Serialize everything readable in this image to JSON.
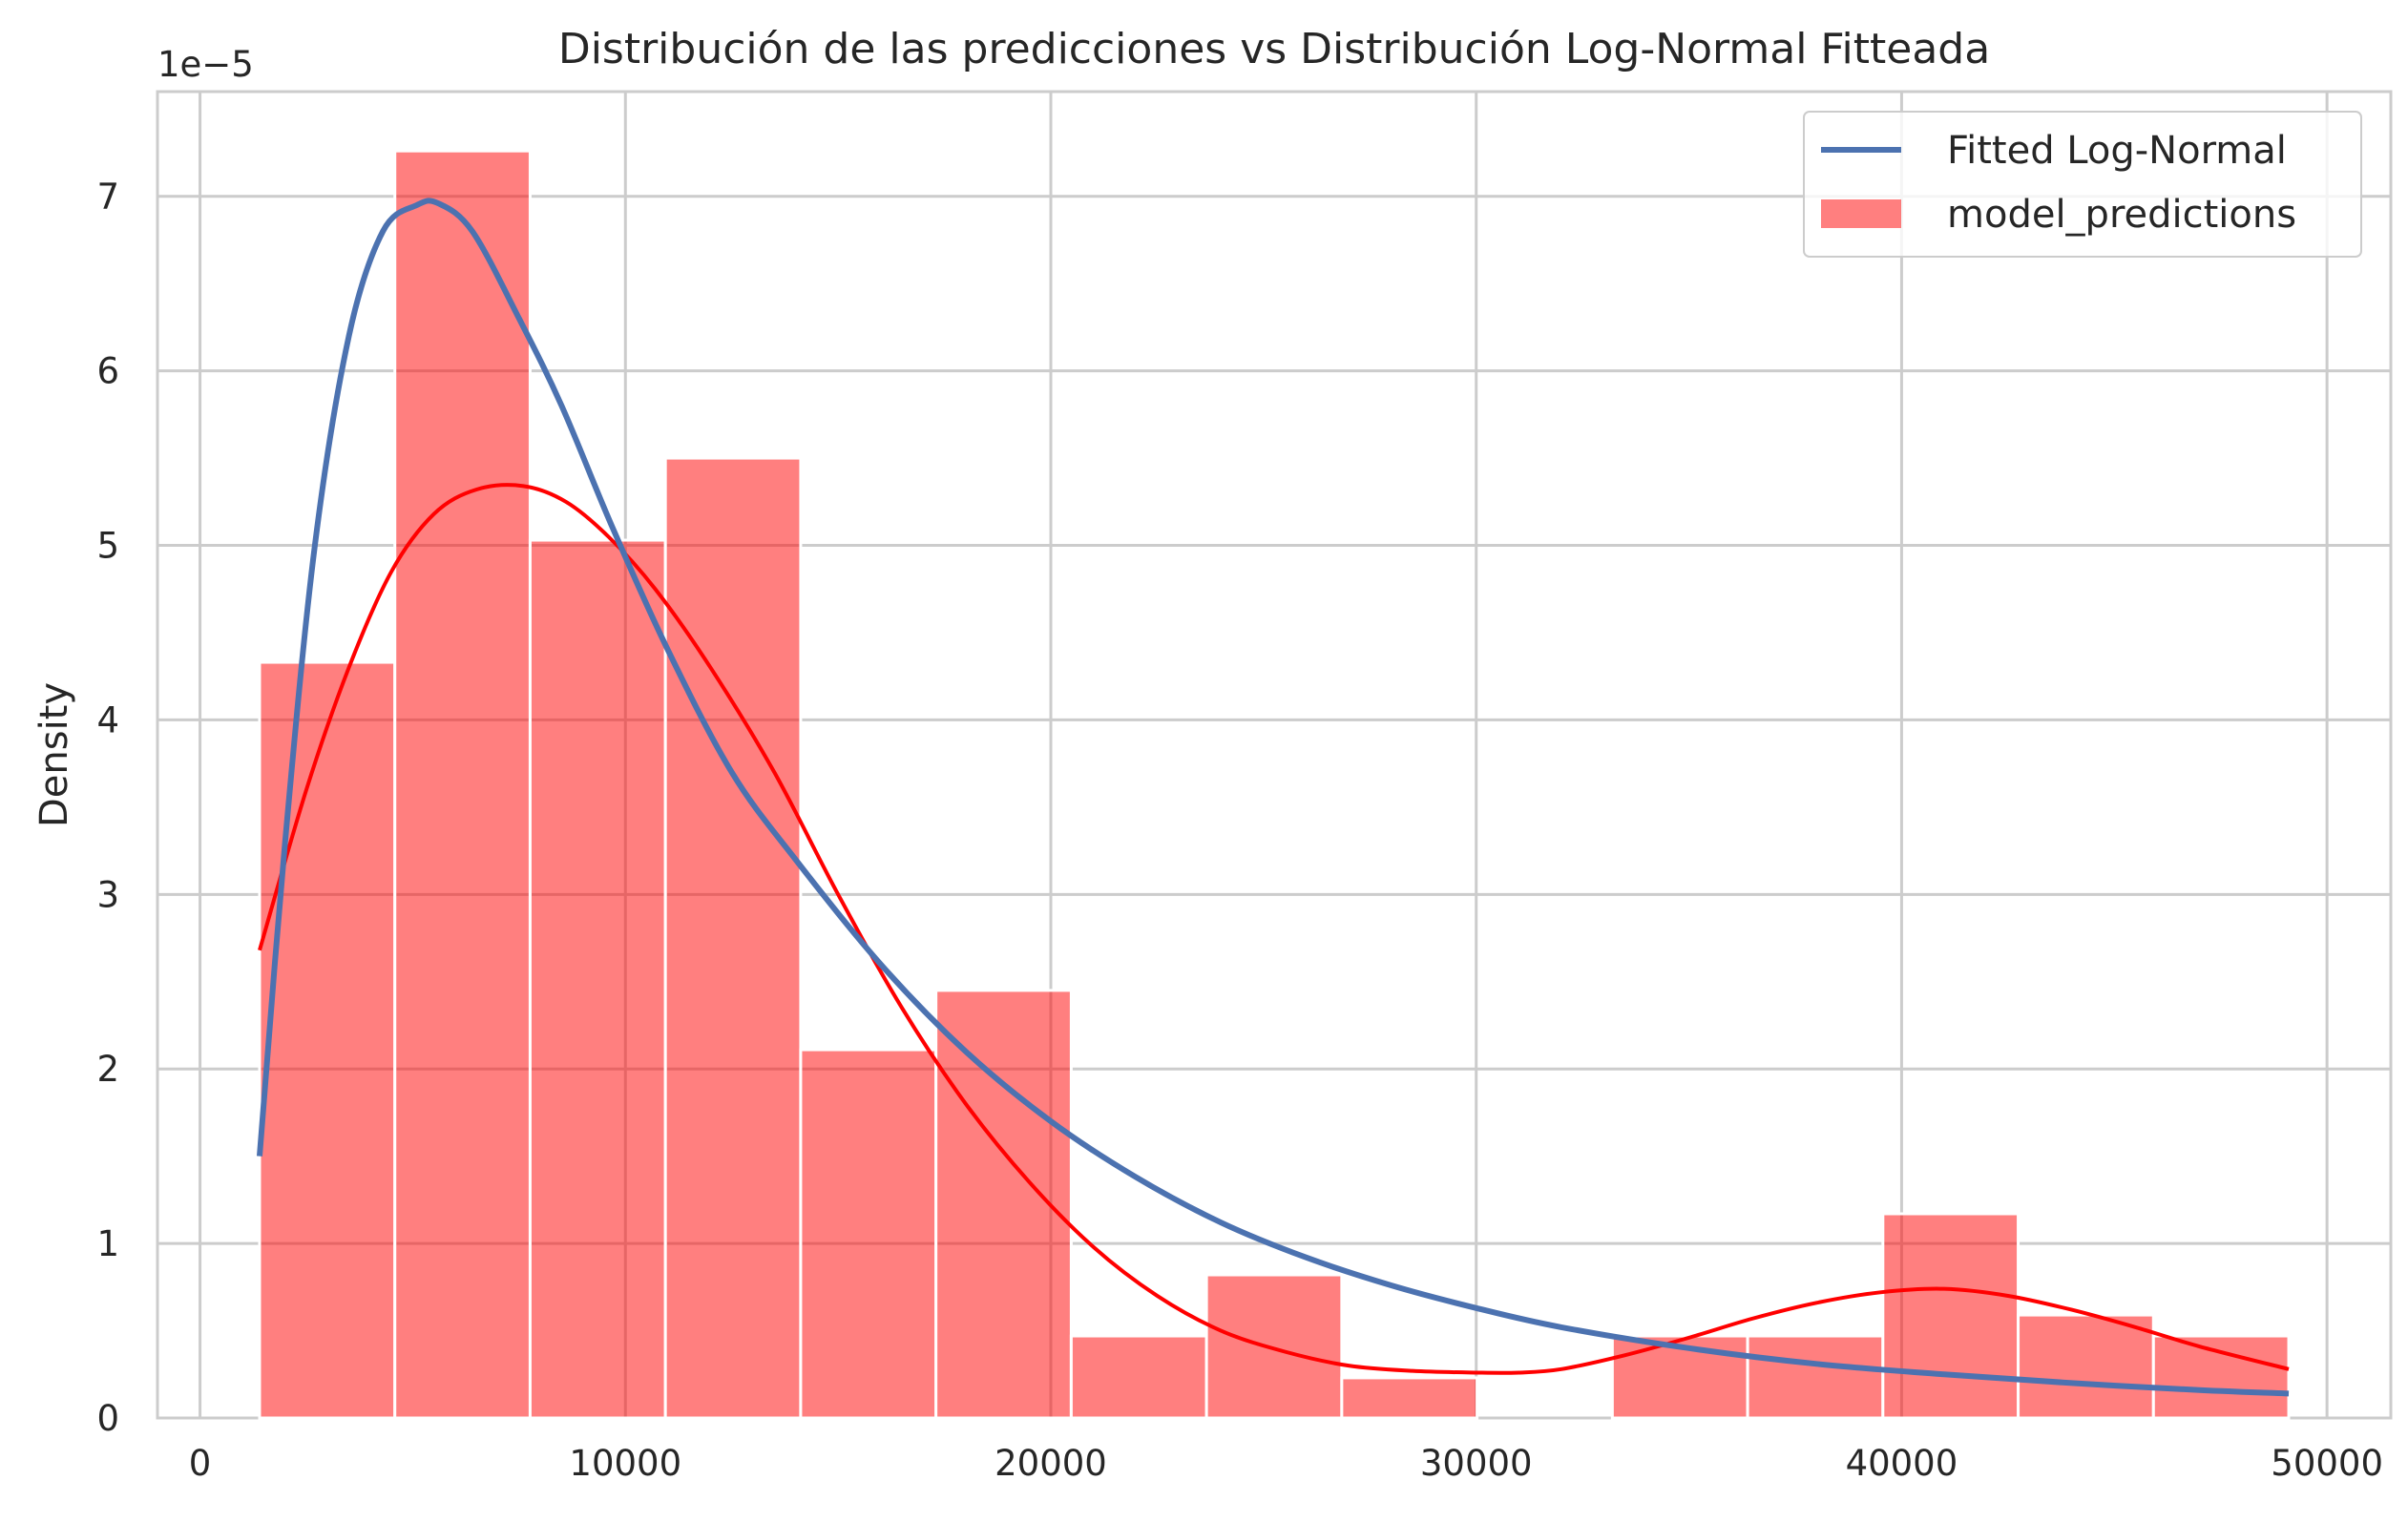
{
  "chart_data": {
    "type": "histogram",
    "title": "Distribución de las predicciones vs Distribución Log-Normal Fitteada",
    "xlabel": "",
    "ylabel": "Density",
    "offset_label": "1e−5",
    "xlim": [
      -1000,
      51500
    ],
    "ylim": [
      0,
      7.6
    ],
    "y_scale": "1e-5",
    "grid": true,
    "x_ticks": [
      0,
      10000,
      20000,
      30000,
      40000,
      50000
    ],
    "x_tick_labels": [
      "0",
      "10000",
      "20000",
      "30000",
      "40000",
      "50000"
    ],
    "y_ticks": [
      0,
      1,
      2,
      3,
      4,
      5,
      6,
      7
    ],
    "y_tick_labels": [
      "0",
      "1",
      "2",
      "3",
      "4",
      "5",
      "6",
      "7"
    ],
    "legend": {
      "placement": "top-right",
      "entries": [
        "Fitted Log-Normal",
        "model_predictions"
      ]
    },
    "histogram": {
      "name": "model_predictions",
      "color": "#ff0000",
      "opacity": 0.5,
      "bin_edges": [
        1400,
        4580,
        7760,
        10940,
        14120,
        17300,
        20480,
        23660,
        26840,
        30020,
        33200,
        36380,
        39560,
        42740,
        45920,
        49100
      ],
      "values": [
        4.33,
        7.26,
        5.03,
        5.5,
        2.11,
        2.45,
        0.47,
        0.82,
        0.23,
        0,
        0.47,
        0.47,
        1.17,
        0.59,
        0.47
      ]
    },
    "series": [
      {
        "name": "Fitted Log-Normal",
        "color": "#4c72b0",
        "x": [
          1400,
          2000,
          2700,
          3500,
          4300,
          5100,
          5600,
          6400,
          7500,
          8500,
          9700,
          11000,
          12500,
          14000,
          16000,
          18000,
          20000,
          22000,
          24000,
          26000,
          28000,
          30000,
          32000,
          35000,
          38000,
          41000,
          44000,
          47000,
          49100
        ],
        "values": [
          1.5,
          3.3,
          5.0,
          6.2,
          6.8,
          6.95,
          6.96,
          6.8,
          6.3,
          5.8,
          5.1,
          4.4,
          3.7,
          3.2,
          2.6,
          2.1,
          1.7,
          1.38,
          1.12,
          0.92,
          0.76,
          0.63,
          0.52,
          0.4,
          0.31,
          0.25,
          0.2,
          0.16,
          0.14
        ]
      },
      {
        "name": "model_predictions (kde)",
        "color": "#ff0000",
        "x": [
          1400,
          2500,
          3500,
          4500,
          5500,
          6500,
          7600,
          8600,
          9600,
          10700,
          12000,
          13500,
          15000,
          16500,
          18000,
          19500,
          21000,
          22500,
          24000,
          25500,
          27000,
          28500,
          30000,
          31000,
          32000,
          33500,
          35000,
          36500,
          38000,
          39500,
          41000,
          42500,
          44000,
          45500,
          47000,
          49100
        ],
        "values": [
          2.68,
          3.6,
          4.3,
          4.85,
          5.18,
          5.32,
          5.34,
          5.25,
          5.05,
          4.75,
          4.3,
          3.7,
          3.0,
          2.35,
          1.8,
          1.35,
          0.98,
          0.7,
          0.5,
          0.38,
          0.3,
          0.27,
          0.26,
          0.26,
          0.28,
          0.36,
          0.46,
          0.57,
          0.66,
          0.72,
          0.74,
          0.7,
          0.62,
          0.52,
          0.41,
          0.28
        ]
      }
    ]
  }
}
